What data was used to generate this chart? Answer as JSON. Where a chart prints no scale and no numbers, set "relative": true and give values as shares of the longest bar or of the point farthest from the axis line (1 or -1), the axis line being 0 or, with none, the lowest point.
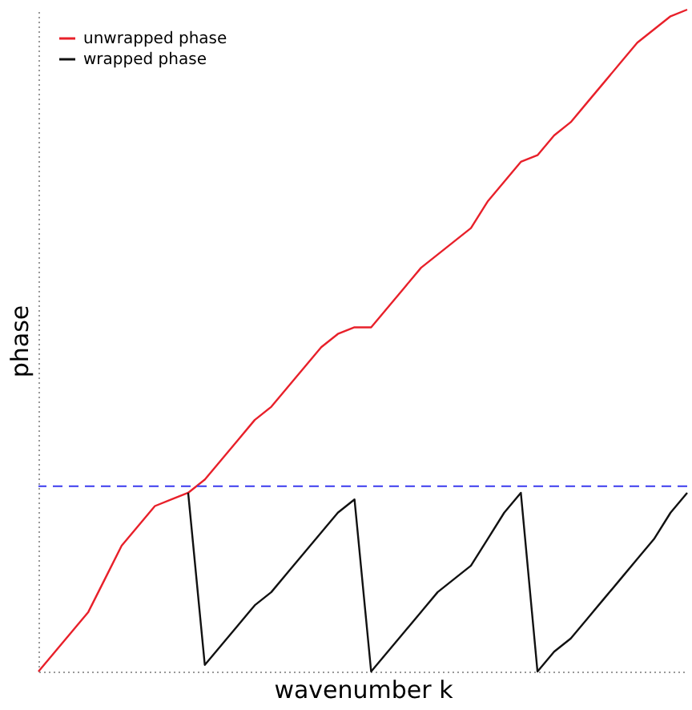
{
  "chart_data": {
    "type": "line",
    "xlabel": "wavenumber k",
    "ylabel": "phase",
    "relative": true,
    "legend": "top left",
    "grid": false,
    "marker": "none",
    "line_style": "solid",
    "categories": [
      null,
      null,
      null,
      null,
      null,
      null,
      null,
      null,
      null,
      null,
      null,
      null,
      null,
      null,
      null,
      null,
      null,
      null,
      null,
      null,
      null,
      null,
      null,
      null,
      null,
      null,
      null,
      null,
      null,
      null,
      null,
      null,
      null,
      null,
      null,
      null,
      null,
      null,
      null,
      null
    ],
    "series": [
      {
        "name": "unwrapped phase",
        "color": "#e8202a",
        "values": [
          0,
          0.03,
          0.06,
          0.09,
          0.14,
          0.19,
          0.22,
          0.25,
          0.26,
          0.27,
          0.29,
          0.32,
          0.35,
          0.38,
          0.4,
          0.43,
          0.46,
          0.49,
          0.51,
          0.52,
          0.52,
          0.55,
          0.58,
          0.61,
          0.63,
          0.65,
          0.67,
          0.71,
          0.74,
          0.77,
          0.78,
          0.81,
          0.83,
          0.86,
          0.89,
          0.92,
          0.95,
          0.97,
          0.99,
          1.0
        ]
      },
      {
        "name": "wrapped phase",
        "color": "#111111",
        "values": [
          null,
          null,
          null,
          null,
          null,
          null,
          null,
          null,
          null,
          0.27,
          0.01,
          0.04,
          0.07,
          0.1,
          0.12,
          0.15,
          0.18,
          0.21,
          0.24,
          0.26,
          0.0,
          0.03,
          0.06,
          0.09,
          0.12,
          0.14,
          0.16,
          0.2,
          0.24,
          0.27,
          0.0,
          0.03,
          0.05,
          0.08,
          0.11,
          0.14,
          0.17,
          0.2,
          0.24,
          0.27
        ]
      }
    ],
    "ref_lines": [
      {
        "axis": "y",
        "value": 0.28,
        "color": "#3a3aee",
        "line_style": "dashed"
      }
    ]
  }
}
